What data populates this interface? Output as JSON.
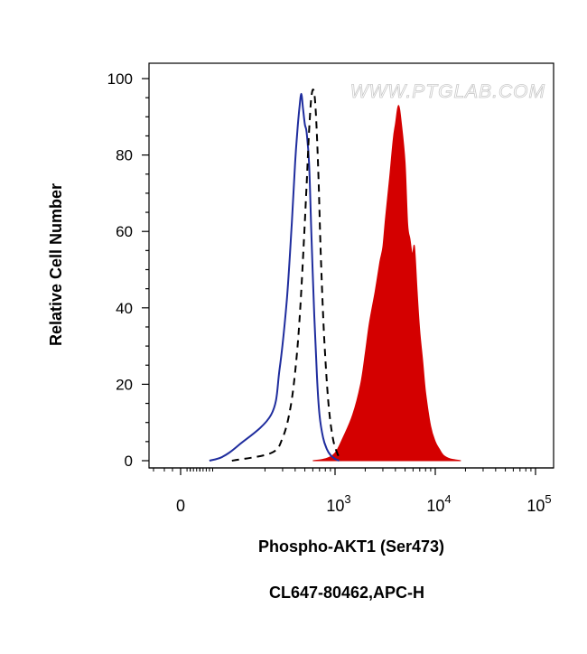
{
  "watermark": "WWW.PTGLAB.COM",
  "chart_data": {
    "type": "histogram",
    "title": "",
    "xlabel": "Phospho-AKT1 (Ser473)",
    "xlabel2": "CL647-80462,APC-H",
    "ylabel": "Relative Cell Number",
    "x_scale": "biexponential",
    "xlim": [
      -100,
      150000
    ],
    "ylim": [
      0,
      100
    ],
    "y_ticks": [
      0,
      20,
      40,
      60,
      80,
      100
    ],
    "x_ticks": [
      {
        "value": 0,
        "base": "0",
        "exp": ""
      },
      {
        "value": 1000,
        "base": "10",
        "exp": "3"
      },
      {
        "value": 10000,
        "base": "10",
        "exp": "4"
      },
      {
        "value": 100000,
        "base": "10",
        "exp": "5"
      }
    ],
    "series": [
      {
        "style": "filled",
        "color": "#d40000",
        "x": [
          600,
          800,
          1000,
          1200,
          1500,
          1800,
          2000,
          2200,
          2500,
          2800,
          3000,
          3200,
          3500,
          3800,
          4000,
          4300,
          4600,
          5000,
          5300,
          5600,
          5900,
          6200,
          6600,
          7000,
          7500,
          8000,
          9000,
          10000,
          11000,
          12000,
          14000,
          18000
        ],
        "y": [
          0,
          0.5,
          2,
          6,
          12,
          20,
          28,
          36,
          44,
          52,
          56,
          64,
          74,
          84,
          88,
          93,
          88,
          78,
          62,
          58,
          54,
          56,
          44,
          34,
          26,
          18,
          9,
          5,
          3,
          1.5,
          0.5,
          0
        ]
      },
      {
        "style": "solid",
        "color": "#1f2d9e",
        "x": [
          90,
          130,
          180,
          230,
          280,
          330,
          370,
          400,
          420,
          440,
          460,
          480,
          500,
          520,
          550,
          580,
          620,
          660,
          700,
          760,
          830,
          900,
          1000,
          1100
        ],
        "y": [
          0,
          1,
          4,
          12,
          24,
          42,
          62,
          78,
          86,
          92,
          96,
          92,
          88,
          86,
          78,
          60,
          38,
          22,
          12,
          6,
          3,
          1.5,
          0.5,
          0
        ]
      },
      {
        "style": "dashed",
        "color": "#000000",
        "x": [
          160,
          230,
          300,
          360,
          410,
          450,
          490,
          520,
          550,
          580,
          610,
          640,
          680,
          720,
          780,
          860,
          950,
          1050,
          1150
        ],
        "y": [
          0,
          2,
          6,
          14,
          26,
          40,
          58,
          72,
          86,
          95,
          97,
          92,
          76,
          54,
          32,
          15,
          6,
          2,
          0
        ]
      }
    ]
  }
}
